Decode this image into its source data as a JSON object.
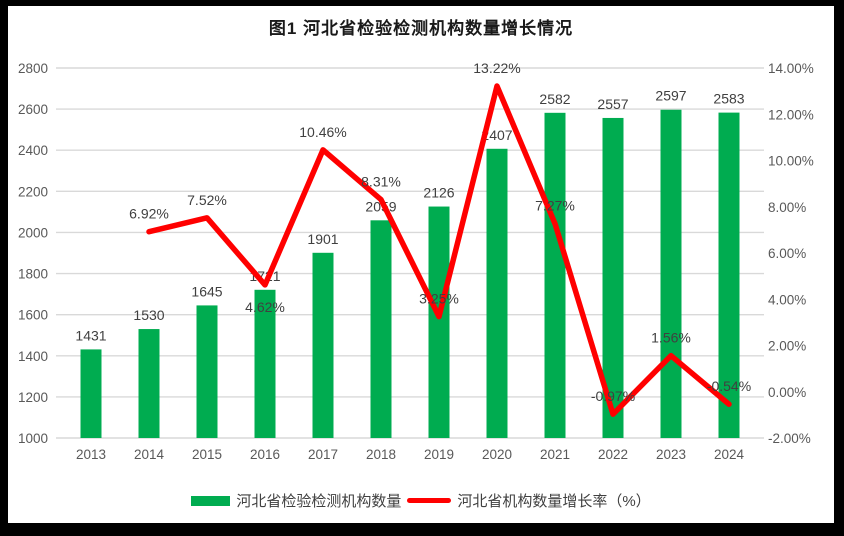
{
  "title": "图1  河北省检验检测机构数量增长情况",
  "legend": {
    "items": [
      {
        "label": "河北省检验检测机构数量",
        "swatch": "bar-swatch",
        "color": "#00AC50"
      },
      {
        "label": "河北省机构数量增长率（%）",
        "swatch": "line-swatch",
        "color": "#FF0000"
      }
    ]
  },
  "colors": {
    "bar": "#00AC50",
    "line": "#FF0000",
    "gridline": "#D9D9D9",
    "tick_label": "#595959",
    "data_label": "#404040",
    "background": "#FFFFFF",
    "frame": "#000000"
  },
  "chart_data": {
    "type": "bar",
    "subtype": "bar-line-combo",
    "title": "图1  河北省检验检测机构数量增长情况",
    "categories": [
      "2013",
      "2014",
      "2015",
      "2016",
      "2017",
      "2018",
      "2019",
      "2020",
      "2021",
      "2022",
      "2023",
      "2024"
    ],
    "series": [
      {
        "name": "河北省检验检测机构数量",
        "type": "bar",
        "axis": "left",
        "color": "#00AC50",
        "values": [
          1431,
          1530,
          1645,
          1721,
          1901,
          2059,
          2126,
          2407,
          2582,
          2557,
          2597,
          2583
        ],
        "labels": [
          "1431",
          "1530",
          "1645",
          "1721",
          "1901",
          "2059",
          "2126",
          "2407",
          "2582",
          "2557",
          "2597",
          "2583"
        ]
      },
      {
        "name": "河北省机构数量增长率（%）",
        "type": "line",
        "axis": "right",
        "color": "#FF0000",
        "values": [
          null,
          6.92,
          7.52,
          4.62,
          10.46,
          8.31,
          3.25,
          13.22,
          7.27,
          -0.97,
          1.56,
          -0.54
        ],
        "labels": [
          "",
          "6.92%",
          "7.52%",
          "4.62%",
          "10.46%",
          "8.31%",
          "3.25%",
          "13.22%",
          "7.27%",
          "-0.97%",
          "1.56%",
          "-0.54%"
        ]
      }
    ],
    "left_axis": {
      "min": 1000,
      "max": 2800,
      "step": 200,
      "ticks": [
        "1000",
        "1200",
        "1400",
        "1600",
        "1800",
        "2000",
        "2200",
        "2400",
        "2600",
        "2800"
      ]
    },
    "right_axis": {
      "min": -2,
      "max": 14,
      "step": 2,
      "ticks": [
        "-2.00%",
        "0.00%",
        "2.00%",
        "4.00%",
        "6.00%",
        "8.00%",
        "10.00%",
        "12.00%",
        "14.00%"
      ]
    },
    "grid": true,
    "legend_position": "bottom",
    "xlabel": "",
    "ylabel": ""
  }
}
